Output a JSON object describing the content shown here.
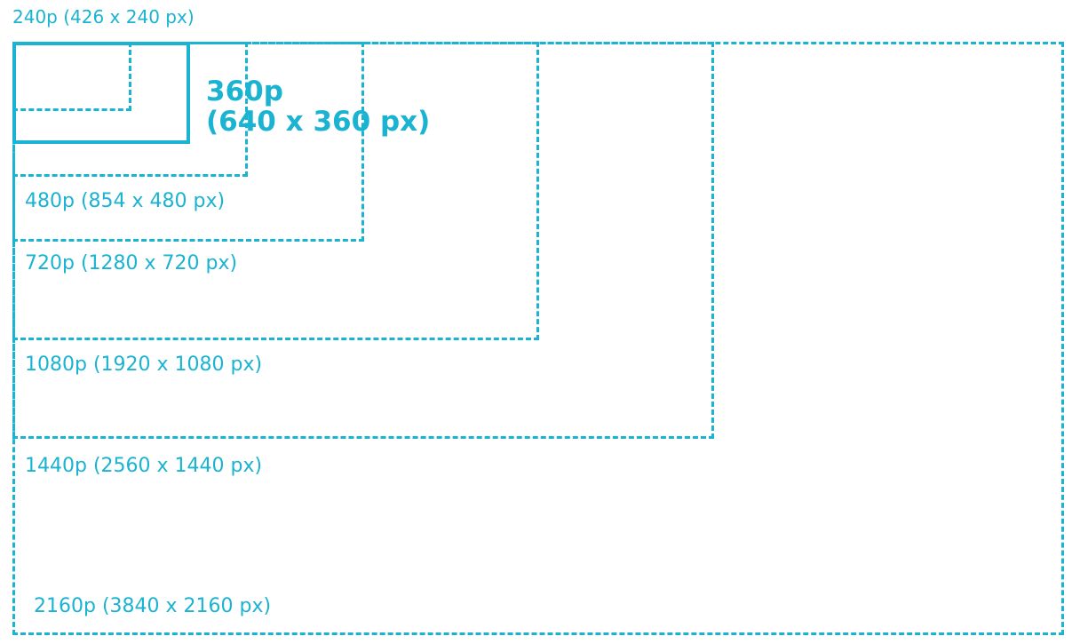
{
  "colors": {
    "accent": "#1ab3d1",
    "background": "#ffffff"
  },
  "labels": {
    "r240": "240p (426 x 240 px)",
    "r360_line1": "360p",
    "r360_line2": "(640 x 360 px)",
    "r480": "480p (854 x 480 px)",
    "r720": "720p (1280 x 720 px)",
    "r1080": "1080p (1920 x 1080 px)",
    "r1440": "1440p (2560 x 1440 px)",
    "r2160": "2160p (3840 x 2160 px)"
  }
}
